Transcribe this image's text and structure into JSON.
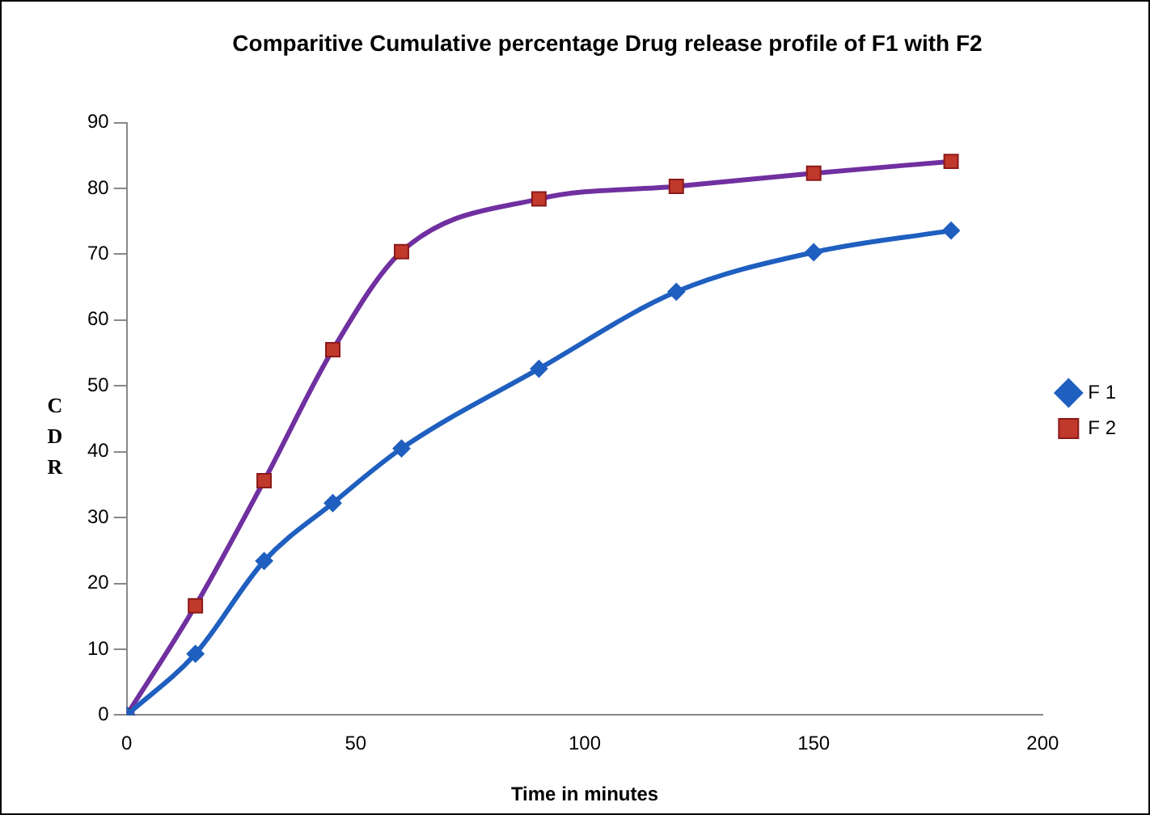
{
  "chart_data": {
    "type": "line",
    "title": "Comparitive Cumulative percentage Drug release profile of F1 with F2",
    "xlabel": "Time in minutes",
    "ylabel": "CDR",
    "x": [
      0,
      15,
      30,
      45,
      60,
      90,
      120,
      150,
      180
    ],
    "series": [
      {
        "name": "F 1",
        "color": "#1f5fbf",
        "marker": "diamond",
        "values": [
          0,
          9.3,
          23.4,
          32.2,
          40.5,
          52.6,
          64.3,
          70.3,
          73.6
        ]
      },
      {
        "name": "F 2",
        "color": "#7030a0",
        "marker": "square",
        "values": [
          0,
          16.6,
          35.6,
          55.5,
          70.4,
          78.4,
          80.3,
          82.3,
          84.1
        ]
      }
    ],
    "xlim": [
      0,
      200
    ],
    "xticks": [
      0,
      50,
      100,
      150,
      200
    ],
    "ylim": [
      0,
      90
    ],
    "yticks": [
      0,
      10,
      20,
      30,
      40,
      50,
      60,
      70,
      80,
      90
    ],
    "grid": false,
    "legend": "right"
  }
}
